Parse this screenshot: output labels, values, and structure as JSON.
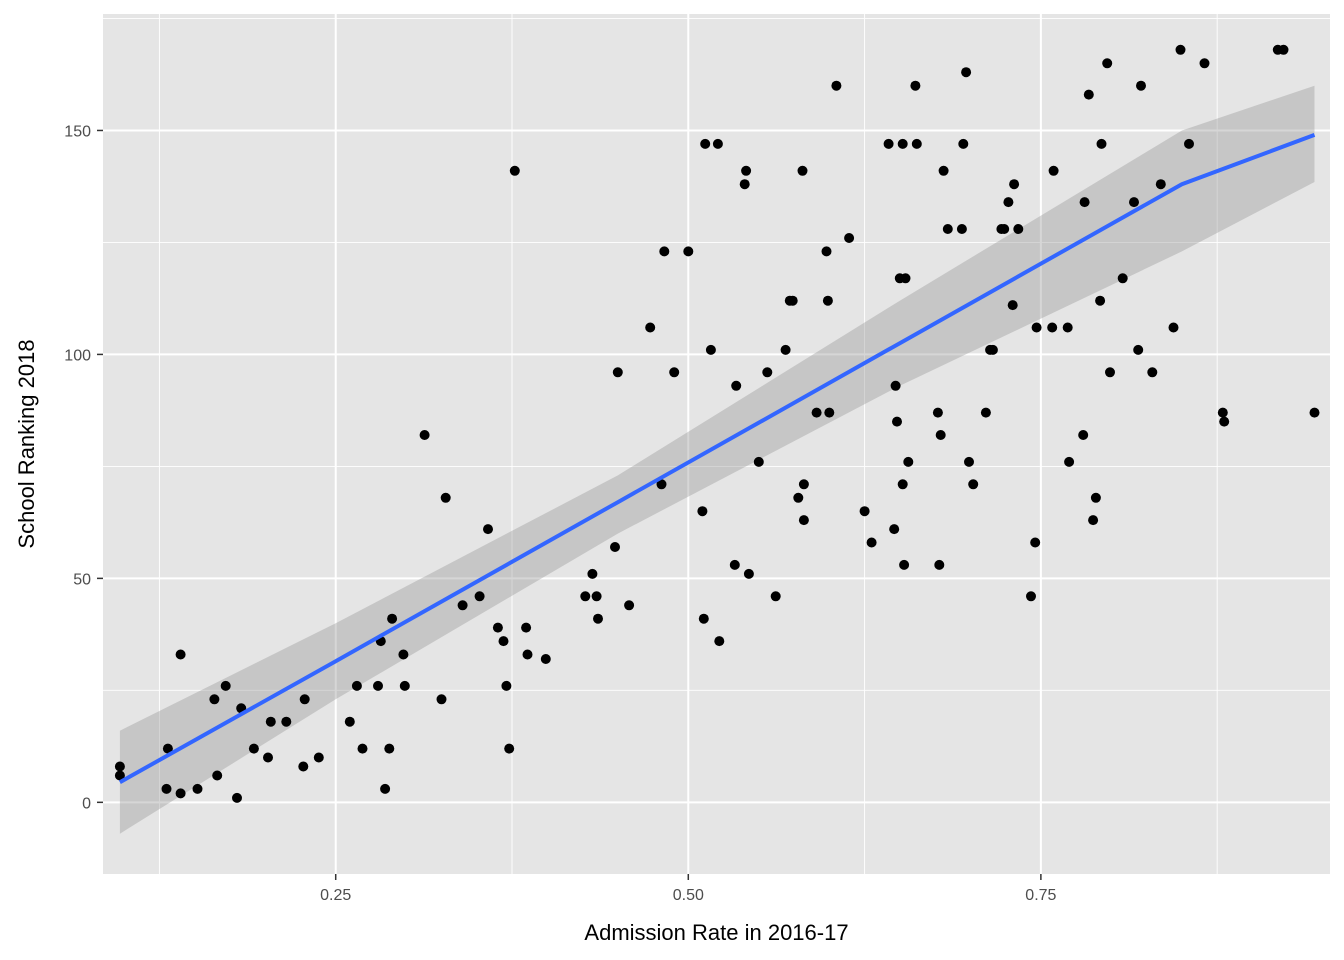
{
  "chart_data": {
    "type": "scatter",
    "xlabel": "Admission Rate in 2016-17",
    "ylabel": "School Ranking 2018",
    "xlim": [
      0.085,
      0.955
    ],
    "ylim": [
      -16,
      176
    ],
    "x_ticks": [
      0.25,
      0.5,
      0.75
    ],
    "x_tick_labels": [
      "0.25",
      "0.50",
      "0.75"
    ],
    "y_ticks": [
      0,
      50,
      100,
      150
    ],
    "y_tick_labels": [
      "0",
      "50",
      "100",
      "150"
    ],
    "grid": true,
    "legend": "none",
    "colors": {
      "panel": "#e5e5e5",
      "grid": "#ffffff",
      "point": "#000000",
      "fit_line": "#3366ff",
      "ribbon": "#999999"
    },
    "fit": {
      "method": "linear",
      "x": [
        0.097,
        0.25,
        0.45,
        0.65,
        0.85,
        0.944
      ],
      "y": [
        4.5,
        31.5,
        67,
        102.5,
        138,
        149
      ],
      "lower": [
        -7,
        23,
        60,
        93,
        123,
        138.5
      ],
      "upper": [
        16,
        40,
        73,
        112,
        150,
        160
      ]
    },
    "points": [
      [
        0.097,
        8
      ],
      [
        0.097,
        6
      ],
      [
        0.13,
        3
      ],
      [
        0.131,
        12
      ],
      [
        0.14,
        2
      ],
      [
        0.14,
        33
      ],
      [
        0.152,
        3
      ],
      [
        0.164,
        23
      ],
      [
        0.166,
        6
      ],
      [
        0.172,
        26
      ],
      [
        0.18,
        1
      ],
      [
        0.183,
        21
      ],
      [
        0.192,
        12
      ],
      [
        0.202,
        10
      ],
      [
        0.204,
        18
      ],
      [
        0.215,
        18
      ],
      [
        0.227,
        8
      ],
      [
        0.228,
        23
      ],
      [
        0.238,
        10
      ],
      [
        0.26,
        18
      ],
      [
        0.265,
        26
      ],
      [
        0.269,
        12
      ],
      [
        0.28,
        26
      ],
      [
        0.282,
        36
      ],
      [
        0.285,
        3
      ],
      [
        0.288,
        12
      ],
      [
        0.29,
        41
      ],
      [
        0.298,
        33
      ],
      [
        0.299,
        26
      ],
      [
        0.313,
        82
      ],
      [
        0.325,
        23
      ],
      [
        0.328,
        68
      ],
      [
        0.34,
        44
      ],
      [
        0.352,
        46
      ],
      [
        0.358,
        61
      ],
      [
        0.365,
        39
      ],
      [
        0.369,
        36
      ],
      [
        0.371,
        26
      ],
      [
        0.373,
        12
      ],
      [
        0.377,
        141
      ],
      [
        0.385,
        39
      ],
      [
        0.386,
        33
      ],
      [
        0.399,
        32
      ],
      [
        0.427,
        46
      ],
      [
        0.432,
        51
      ],
      [
        0.435,
        46
      ],
      [
        0.436,
        41
      ],
      [
        0.448,
        57
      ],
      [
        0.45,
        96
      ],
      [
        0.458,
        44
      ],
      [
        0.473,
        106
      ],
      [
        0.481,
        71
      ],
      [
        0.483,
        123
      ],
      [
        0.49,
        96
      ],
      [
        0.5,
        123
      ],
      [
        0.51,
        65
      ],
      [
        0.511,
        41
      ],
      [
        0.512,
        147
      ],
      [
        0.516,
        101
      ],
      [
        0.521,
        147
      ],
      [
        0.522,
        36
      ],
      [
        0.533,
        53
      ],
      [
        0.534,
        93
      ],
      [
        0.54,
        138
      ],
      [
        0.541,
        141
      ],
      [
        0.543,
        51
      ],
      [
        0.55,
        76
      ],
      [
        0.556,
        96
      ],
      [
        0.562,
        46
      ],
      [
        0.569,
        101
      ],
      [
        0.572,
        112
      ],
      [
        0.574,
        112
      ],
      [
        0.578,
        68
      ],
      [
        0.581,
        141
      ],
      [
        0.582,
        71
      ],
      [
        0.582,
        63
      ],
      [
        0.591,
        87
      ],
      [
        0.598,
        123
      ],
      [
        0.599,
        112
      ],
      [
        0.6,
        87
      ],
      [
        0.605,
        160
      ],
      [
        0.614,
        126
      ],
      [
        0.625,
        65
      ],
      [
        0.63,
        58
      ],
      [
        0.642,
        147
      ],
      [
        0.646,
        61
      ],
      [
        0.647,
        93
      ],
      [
        0.648,
        85
      ],
      [
        0.65,
        117
      ],
      [
        0.652,
        147
      ],
      [
        0.652,
        71
      ],
      [
        0.653,
        53
      ],
      [
        0.654,
        117
      ],
      [
        0.656,
        76
      ],
      [
        0.661,
        160
      ],
      [
        0.662,
        147
      ],
      [
        0.677,
        87
      ],
      [
        0.678,
        53
      ],
      [
        0.679,
        82
      ],
      [
        0.681,
        141
      ],
      [
        0.684,
        128
      ],
      [
        0.694,
        128
      ],
      [
        0.695,
        147
      ],
      [
        0.697,
        163
      ],
      [
        0.699,
        76
      ],
      [
        0.702,
        71
      ],
      [
        0.711,
        87
      ],
      [
        0.714,
        101
      ],
      [
        0.716,
        101
      ],
      [
        0.722,
        128
      ],
      [
        0.724,
        128
      ],
      [
        0.727,
        134
      ],
      [
        0.73,
        111
      ],
      [
        0.731,
        138
      ],
      [
        0.734,
        128
      ],
      [
        0.743,
        46
      ],
      [
        0.746,
        58
      ],
      [
        0.747,
        106
      ],
      [
        0.758,
        106
      ],
      [
        0.759,
        141
      ],
      [
        0.769,
        106
      ],
      [
        0.77,
        76
      ],
      [
        0.78,
        82
      ],
      [
        0.781,
        134
      ],
      [
        0.784,
        158
      ],
      [
        0.787,
        63
      ],
      [
        0.789,
        68
      ],
      [
        0.792,
        112
      ],
      [
        0.793,
        147
      ],
      [
        0.797,
        165
      ],
      [
        0.799,
        96
      ],
      [
        0.808,
        117
      ],
      [
        0.816,
        134
      ],
      [
        0.819,
        101
      ],
      [
        0.821,
        160
      ],
      [
        0.829,
        96
      ],
      [
        0.835,
        138
      ],
      [
        0.844,
        106
      ],
      [
        0.849,
        168
      ],
      [
        0.855,
        147
      ],
      [
        0.866,
        165
      ],
      [
        0.879,
        87
      ],
      [
        0.88,
        85
      ],
      [
        0.918,
        168
      ],
      [
        0.922,
        168
      ],
      [
        0.944,
        87
      ]
    ]
  }
}
